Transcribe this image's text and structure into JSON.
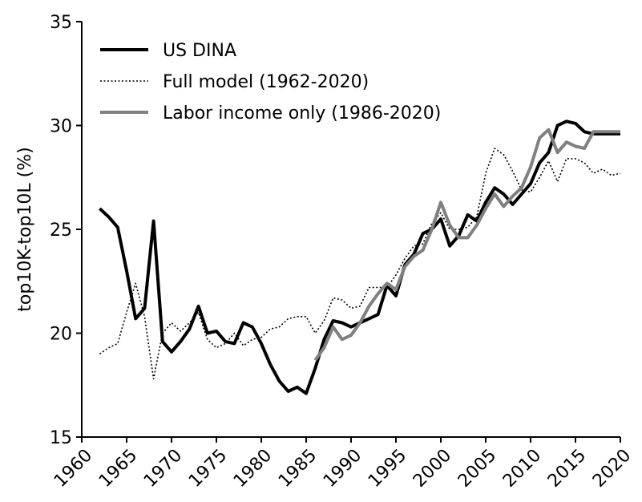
{
  "chart_data": {
    "type": "line",
    "ylabel": "top10K-top10L (%)",
    "x": [
      1962,
      1963,
      1964,
      1965,
      1966,
      1967,
      1968,
      1969,
      1970,
      1971,
      1972,
      1973,
      1974,
      1975,
      1976,
      1977,
      1978,
      1979,
      1980,
      1981,
      1982,
      1983,
      1984,
      1985,
      1986,
      1987,
      1988,
      1989,
      1990,
      1991,
      1992,
      1993,
      1994,
      1995,
      1996,
      1997,
      1998,
      1999,
      2000,
      2001,
      2002,
      2003,
      2004,
      2005,
      2006,
      2007,
      2008,
      2009,
      2010,
      2011,
      2012,
      2013,
      2014,
      2015,
      2016,
      2017,
      2018,
      2019,
      2020
    ],
    "xlim": [
      1960,
      2020
    ],
    "xticks": [
      1960,
      1965,
      1970,
      1975,
      1980,
      1985,
      1990,
      1995,
      2000,
      2005,
      2010,
      2015,
      2020
    ],
    "ylim": [
      15,
      35
    ],
    "yticks": [
      15,
      20,
      25,
      30,
      35
    ],
    "grid": false,
    "legend": "upper left",
    "series": [
      {
        "name": "US DINA",
        "color": "#000000",
        "linestyle": "solid",
        "values": [
          26.0,
          25.6,
          25.1,
          23.0,
          20.7,
          21.2,
          25.4,
          19.6,
          19.1,
          19.6,
          20.2,
          21.3,
          20.0,
          20.1,
          19.6,
          19.5,
          20.5,
          20.3,
          19.5,
          18.5,
          17.7,
          17.2,
          17.4,
          17.1,
          18.3,
          19.7,
          20.6,
          20.5,
          20.3,
          20.5,
          20.7,
          20.9,
          22.3,
          21.8,
          23.3,
          23.8,
          24.8,
          25.0,
          25.5,
          24.2,
          24.7,
          25.7,
          25.4,
          26.3,
          27.0,
          26.7,
          26.2,
          26.7,
          27.2,
          28.2,
          28.7,
          30.0,
          30.2,
          30.1,
          29.7,
          29.6,
          29.6,
          29.6,
          29.6
        ]
      },
      {
        "name": "Full model  (1962-2020)",
        "color": "#000000",
        "linestyle": "dotted",
        "values": [
          19.0,
          19.3,
          19.5,
          21.0,
          22.4,
          20.8,
          17.8,
          20.0,
          20.5,
          20.1,
          20.5,
          21.0,
          19.7,
          19.3,
          19.5,
          20.0,
          19.4,
          19.7,
          19.8,
          20.2,
          20.3,
          20.7,
          20.8,
          20.8,
          20.0,
          20.6,
          21.7,
          21.6,
          21.2,
          21.3,
          22.2,
          22.2,
          22.2,
          22.8,
          23.6,
          24.2,
          24.3,
          25.3,
          25.8,
          25.0,
          25.0,
          25.1,
          25.6,
          27.7,
          28.9,
          28.6,
          27.8,
          26.9,
          26.8,
          27.5,
          28.3,
          27.3,
          28.4,
          28.4,
          28.2,
          27.7,
          27.9,
          27.6,
          27.7
        ]
      },
      {
        "name": "Labor income only (1986-2020)",
        "color": "#808080",
        "linestyle": "solid",
        "values": [
          null,
          null,
          null,
          null,
          null,
          null,
          null,
          null,
          null,
          null,
          null,
          null,
          null,
          null,
          null,
          null,
          null,
          null,
          null,
          null,
          null,
          null,
          null,
          null,
          18.7,
          19.3,
          20.3,
          19.7,
          19.9,
          20.5,
          21.3,
          21.9,
          22.4,
          22.1,
          23.2,
          23.7,
          24.0,
          25.0,
          26.3,
          25.2,
          24.6,
          24.6,
          25.2,
          26.0,
          26.7,
          26.1,
          26.6,
          27.0,
          28.0,
          29.4,
          29.8,
          28.7,
          29.2,
          29.0,
          28.9,
          29.7,
          29.7,
          29.7,
          29.7
        ]
      }
    ]
  }
}
